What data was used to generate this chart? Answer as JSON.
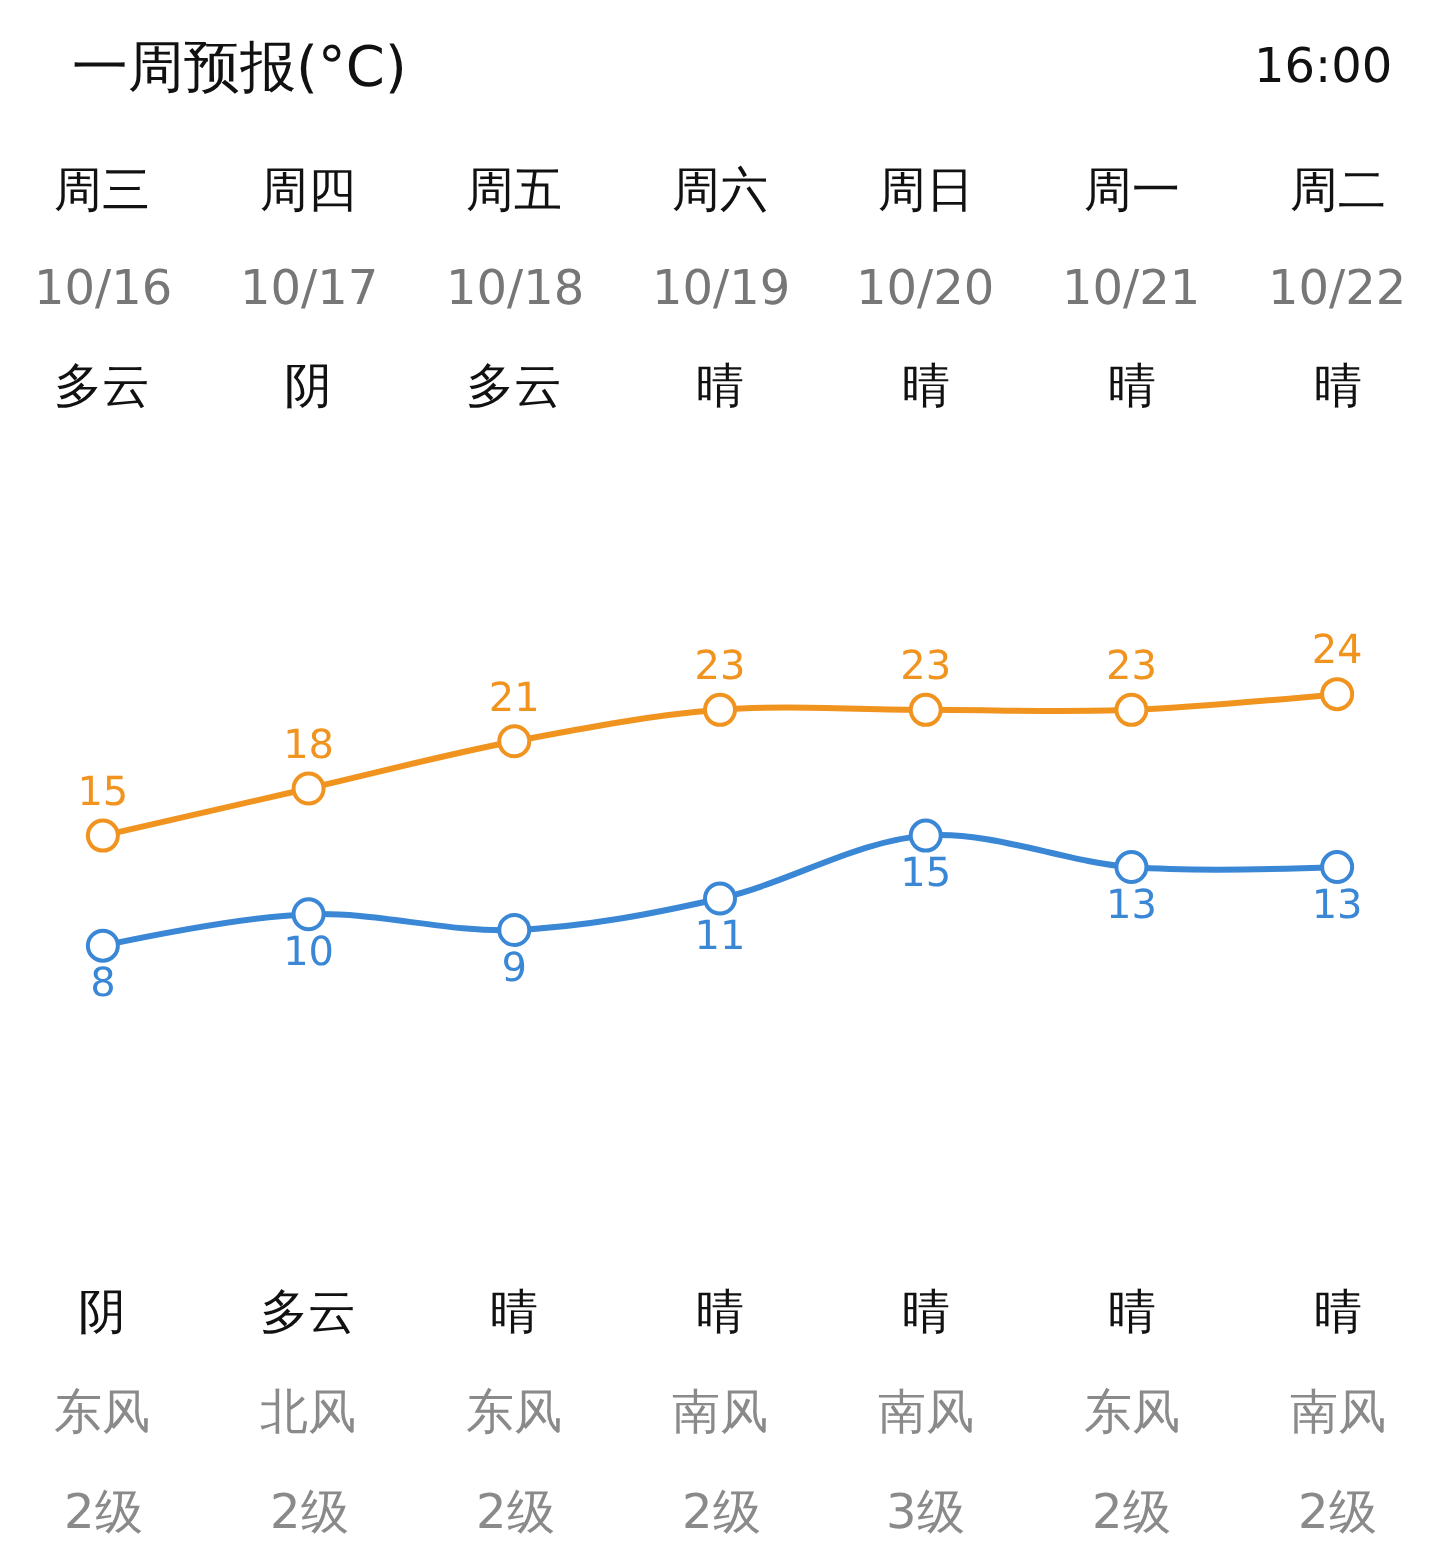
{
  "chart_data": {
    "type": "line",
    "title": "一周预报(°C)",
    "annotations": [
      "16:00",
      "阴",
      "东风",
      "2级",
      "多云",
      "北风",
      "2级",
      "晴",
      "东风",
      "2级",
      "晴",
      "南风",
      "2级",
      "晴",
      "南风",
      "3级",
      "晴",
      "东风",
      "2级",
      "晴",
      "南风",
      "2级"
    ],
    "categories": [
      "周三\n10/16\n多云",
      "周四\n10/17\n阴",
      "周五\n10/18\n多云",
      "周六\n10/19\n晴",
      "周日\n10/20\n晴",
      "周一\n10/21\n晴",
      "周二\n10/22\n晴"
    ],
    "series": [
      {
        "color": "#f0941f",
        "values": [
          15,
          18,
          21,
          23,
          23,
          23,
          24
        ]
      },
      {
        "color": "#3a87d6",
        "values": [
          8,
          10,
          9,
          11,
          15,
          13,
          13
        ]
      }
    ],
    "data_labels": true,
    "marker": "circle",
    "line_style": "solid"
  }
}
